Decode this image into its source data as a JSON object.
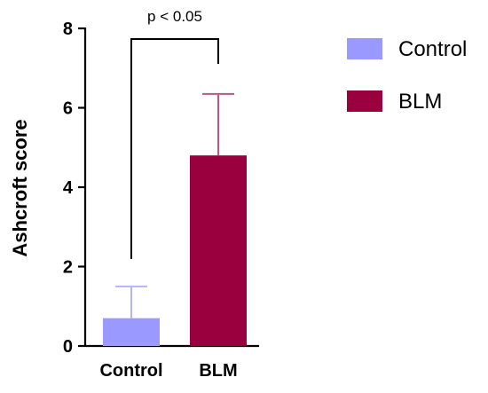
{
  "chart_data": {
    "type": "bar",
    "title": "",
    "xlabel": "",
    "ylabel": "Ashcroft score",
    "ylim": [
      0,
      8
    ],
    "yticks": [
      0,
      2,
      4,
      6,
      8
    ],
    "categories": [
      "Control",
      "BLM"
    ],
    "values": [
      0.7,
      4.8
    ],
    "errors": [
      0.8,
      1.55
    ],
    "colors": [
      "#9999ff",
      "#99003d"
    ],
    "error_colors": [
      "#b3b3ff",
      "#c2557f"
    ],
    "grid": false,
    "legend": {
      "placement": "right",
      "entries": [
        "Control",
        "BLM"
      ]
    },
    "annotations": [
      {
        "text": "p < 0.05",
        "between": [
          "Control",
          "BLM"
        ]
      }
    ]
  }
}
